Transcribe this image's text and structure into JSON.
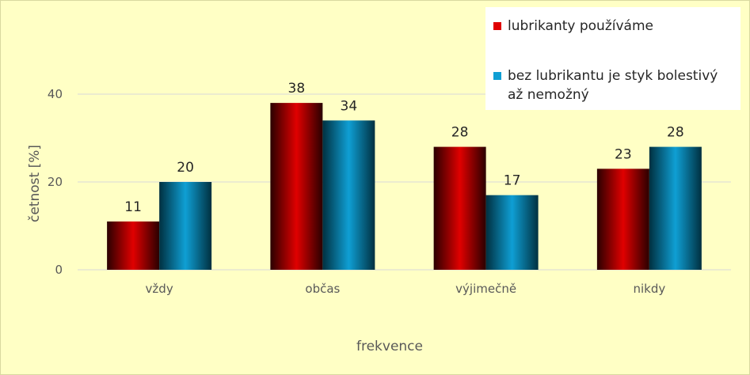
{
  "chart_data": {
    "type": "bar",
    "categories": [
      "vždy",
      "občas",
      "výjimečně",
      "nikdy"
    ],
    "series": [
      {
        "name": "lubrikanty používáme",
        "values": [
          11,
          38,
          28,
          23
        ],
        "color": "#e00000"
      },
      {
        "name": "bez lubrikantu je styk bolestivý až nemožný",
        "values": [
          20,
          34,
          17,
          28
        ],
        "color": "#0f9fd4"
      }
    ],
    "xlabel": "frekvence",
    "ylabel": "četnost [%]",
    "ylim": [
      0,
      40
    ],
    "yticks": [
      0,
      20,
      40
    ],
    "grid": true,
    "legend": "top-right",
    "background": "#ffffc5"
  }
}
